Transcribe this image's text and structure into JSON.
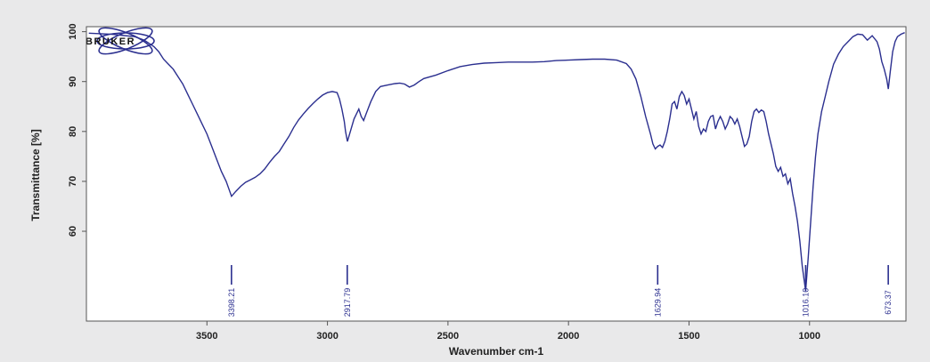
{
  "chart_data": {
    "type": "line",
    "title": "",
    "xlabel": "Wavenumber cm-1",
    "ylabel": "Transmittance [%]",
    "xlim": [
      4000,
      600
    ],
    "x_reversed": true,
    "ylim": [
      42,
      101
    ],
    "xticks": [
      3500,
      3000,
      2500,
      2000,
      1500,
      1000
    ],
    "yticks": [
      60,
      70,
      80,
      90,
      100
    ],
    "logo_text": "BRUKER",
    "colors": {
      "line": "#2b2f8f",
      "peak_label": "#2b2f8f",
      "plot_background": "#ffffff",
      "page_background": "#e9e9ea",
      "axis": "#555555"
    },
    "series": [
      {
        "name": "",
        "points": [
          [
            3990,
            99.7
          ],
          [
            3940,
            99.6
          ],
          [
            3900,
            99.5
          ],
          [
            3860,
            99.3
          ],
          [
            3800,
            99.0
          ],
          [
            3760,
            98.3
          ],
          [
            3720,
            97.0
          ],
          [
            3700,
            96.0
          ],
          [
            3680,
            94.5
          ],
          [
            3660,
            93.5
          ],
          [
            3640,
            92.5
          ],
          [
            3620,
            91.0
          ],
          [
            3600,
            89.5
          ],
          [
            3580,
            87.5
          ],
          [
            3560,
            85.5
          ],
          [
            3540,
            83.5
          ],
          [
            3520,
            81.5
          ],
          [
            3500,
            79.5
          ],
          [
            3480,
            77.0
          ],
          [
            3460,
            74.5
          ],
          [
            3440,
            72.0
          ],
          [
            3420,
            70.0
          ],
          [
            3398,
            67.0
          ],
          [
            3380,
            68.0
          ],
          [
            3360,
            69.0
          ],
          [
            3340,
            69.8
          ],
          [
            3320,
            70.3
          ],
          [
            3300,
            70.8
          ],
          [
            3280,
            71.5
          ],
          [
            3260,
            72.5
          ],
          [
            3240,
            73.8
          ],
          [
            3220,
            75.0
          ],
          [
            3200,
            76.0
          ],
          [
            3180,
            77.5
          ],
          [
            3160,
            79.0
          ],
          [
            3140,
            80.8
          ],
          [
            3120,
            82.3
          ],
          [
            3100,
            83.5
          ],
          [
            3080,
            84.6
          ],
          [
            3060,
            85.6
          ],
          [
            3040,
            86.5
          ],
          [
            3020,
            87.3
          ],
          [
            3000,
            87.8
          ],
          [
            2980,
            88.0
          ],
          [
            2960,
            87.8
          ],
          [
            2950,
            86.5
          ],
          [
            2940,
            84.5
          ],
          [
            2930,
            82.0
          ],
          [
            2925,
            80.0
          ],
          [
            2917,
            78.0
          ],
          [
            2905,
            80.0
          ],
          [
            2890,
            82.5
          ],
          [
            2870,
            84.5
          ],
          [
            2860,
            83.0
          ],
          [
            2850,
            82.2
          ],
          [
            2840,
            83.5
          ],
          [
            2820,
            86.0
          ],
          [
            2800,
            88.0
          ],
          [
            2780,
            89.0
          ],
          [
            2750,
            89.3
          ],
          [
            2720,
            89.6
          ],
          [
            2700,
            89.7
          ],
          [
            2680,
            89.5
          ],
          [
            2660,
            88.9
          ],
          [
            2640,
            89.3
          ],
          [
            2620,
            90.0
          ],
          [
            2600,
            90.6
          ],
          [
            2550,
            91.3
          ],
          [
            2500,
            92.2
          ],
          [
            2450,
            93.0
          ],
          [
            2400,
            93.4
          ],
          [
            2350,
            93.7
          ],
          [
            2300,
            93.8
          ],
          [
            2250,
            93.9
          ],
          [
            2200,
            93.9
          ],
          [
            2150,
            93.9
          ],
          [
            2100,
            94.0
          ],
          [
            2050,
            94.2
          ],
          [
            2000,
            94.3
          ],
          [
            1950,
            94.4
          ],
          [
            1900,
            94.5
          ],
          [
            1850,
            94.5
          ],
          [
            1800,
            94.3
          ],
          [
            1760,
            93.6
          ],
          [
            1740,
            92.5
          ],
          [
            1720,
            90.5
          ],
          [
            1700,
            87.0
          ],
          [
            1680,
            83.0
          ],
          [
            1660,
            79.5
          ],
          [
            1650,
            77.5
          ],
          [
            1640,
            76.5
          ],
          [
            1630,
            77.0
          ],
          [
            1620,
            77.3
          ],
          [
            1610,
            76.8
          ],
          [
            1600,
            78.0
          ],
          [
            1590,
            80.0
          ],
          [
            1580,
            82.5
          ],
          [
            1570,
            85.5
          ],
          [
            1560,
            86.0
          ],
          [
            1550,
            84.5
          ],
          [
            1540,
            87.0
          ],
          [
            1530,
            88.0
          ],
          [
            1520,
            87.2
          ],
          [
            1510,
            85.5
          ],
          [
            1500,
            86.5
          ],
          [
            1490,
            84.5
          ],
          [
            1480,
            82.5
          ],
          [
            1470,
            84.0
          ],
          [
            1460,
            81.0
          ],
          [
            1450,
            79.5
          ],
          [
            1440,
            80.5
          ],
          [
            1430,
            80.0
          ],
          [
            1420,
            82.0
          ],
          [
            1410,
            83.0
          ],
          [
            1400,
            83.2
          ],
          [
            1390,
            80.5
          ],
          [
            1380,
            82.0
          ],
          [
            1370,
            83.0
          ],
          [
            1360,
            82.0
          ],
          [
            1350,
            80.5
          ],
          [
            1340,
            81.5
          ],
          [
            1330,
            83.0
          ],
          [
            1320,
            82.5
          ],
          [
            1310,
            81.5
          ],
          [
            1300,
            82.5
          ],
          [
            1290,
            81.0
          ],
          [
            1280,
            79.0
          ],
          [
            1270,
            77.0
          ],
          [
            1260,
            77.5
          ],
          [
            1250,
            79.0
          ],
          [
            1240,
            82.0
          ],
          [
            1230,
            84.0
          ],
          [
            1220,
            84.5
          ],
          [
            1210,
            83.8
          ],
          [
            1200,
            84.3
          ],
          [
            1190,
            84.0
          ],
          [
            1180,
            82.0
          ],
          [
            1170,
            79.5
          ],
          [
            1160,
            77.5
          ],
          [
            1150,
            75.5
          ],
          [
            1140,
            73.0
          ],
          [
            1130,
            72.0
          ],
          [
            1120,
            72.8
          ],
          [
            1110,
            71.0
          ],
          [
            1100,
            71.5
          ],
          [
            1090,
            69.5
          ],
          [
            1080,
            70.5
          ],
          [
            1070,
            67.5
          ],
          [
            1060,
            65.0
          ],
          [
            1050,
            62.0
          ],
          [
            1040,
            58.0
          ],
          [
            1030,
            53.0
          ],
          [
            1016,
            48.0
          ],
          [
            1005,
            55.0
          ],
          [
            995,
            62.0
          ],
          [
            985,
            69.0
          ],
          [
            975,
            75.0
          ],
          [
            965,
            79.5
          ],
          [
            950,
            84.0
          ],
          [
            935,
            87.0
          ],
          [
            920,
            90.0
          ],
          [
            900,
            93.5
          ],
          [
            880,
            95.5
          ],
          [
            860,
            97.0
          ],
          [
            840,
            98.0
          ],
          [
            820,
            99.0
          ],
          [
            800,
            99.5
          ],
          [
            780,
            99.4
          ],
          [
            760,
            98.3
          ],
          [
            740,
            99.2
          ],
          [
            720,
            98.0
          ],
          [
            710,
            96.5
          ],
          [
            700,
            94.0
          ],
          [
            690,
            92.5
          ],
          [
            680,
            90.5
          ],
          [
            673,
            88.5
          ],
          [
            665,
            92.0
          ],
          [
            655,
            96.0
          ],
          [
            645,
            98.0
          ],
          [
            635,
            99.0
          ],
          [
            620,
            99.5
          ],
          [
            605,
            99.8
          ]
        ]
      }
    ],
    "peak_labels": [
      {
        "x": 3398.21,
        "label": "3398.21"
      },
      {
        "x": 2917.79,
        "label": "2917.79"
      },
      {
        "x": 1629.94,
        "label": "1629.94"
      },
      {
        "x": 1016.1,
        "label": "1016.10"
      },
      {
        "x": 673.37,
        "label": "673.37"
      }
    ],
    "grid": false,
    "legend": "none"
  }
}
